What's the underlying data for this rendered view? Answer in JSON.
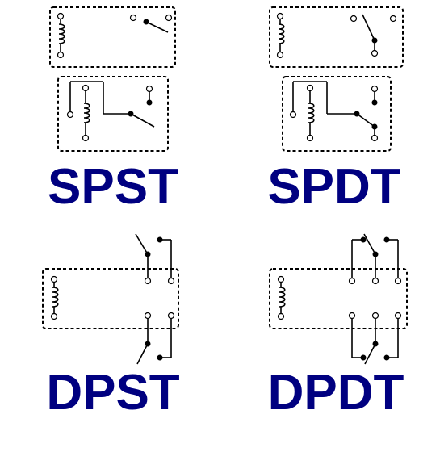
{
  "labels": {
    "spst": "SPST",
    "spdt": "SPDT",
    "dpst": "DPST",
    "dpdt": "DPDT"
  },
  "colors": {
    "label": "#000080",
    "line": "#000000",
    "background": "#ffffff"
  }
}
